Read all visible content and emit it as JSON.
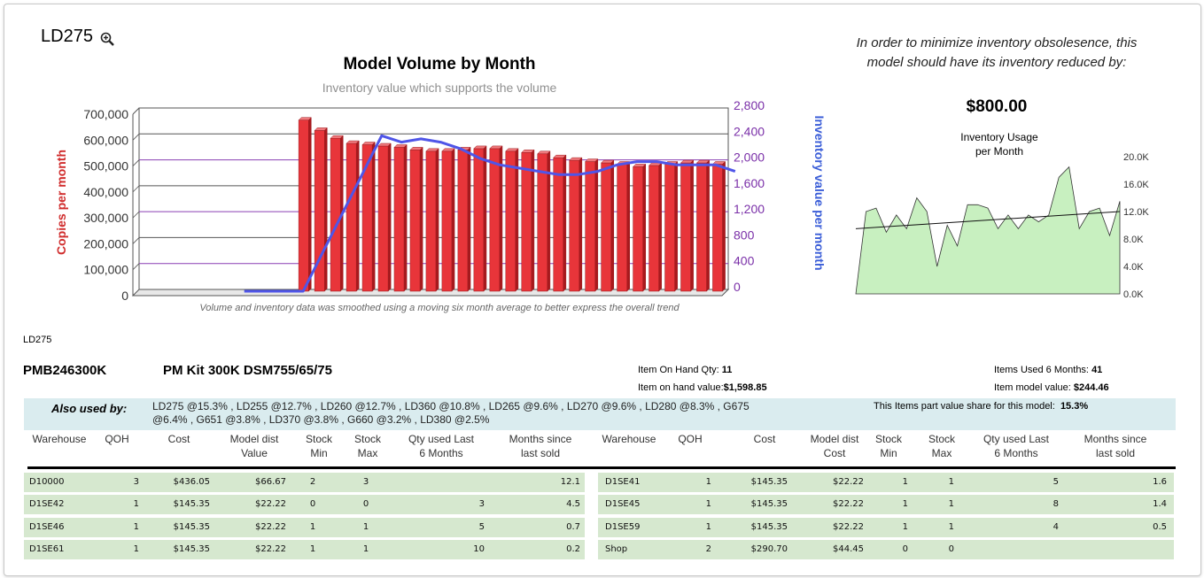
{
  "model": {
    "name": "LD275",
    "zoom_icon": "zoom-in-icon"
  },
  "volume_chart": {
    "title": "Model Volume by Month",
    "subtitle": "Inventory value which supports the volume",
    "left_axis_label": "Copies per month",
    "right_axis_label": "Inventory value per month",
    "footnote": "Volume and inventory data was smoothed using a moving six month average to better express the overall trend",
    "left_ticks": [
      "700,000",
      "600,000",
      "500,000",
      "400,000",
      "300,000",
      "200,000",
      "100,000",
      "0"
    ],
    "right_ticks": [
      "2,800",
      "2,400",
      "2,000",
      "1,600",
      "1,200",
      "800",
      "400",
      "0"
    ],
    "colors": {
      "bars": "#e8353a",
      "line": "#4f55e8",
      "left_label": "#d02b2b",
      "right_label": "#3b5ed8",
      "grid": "#8a3fb3"
    }
  },
  "recommendation": {
    "text": "In order to minimize inventory obsolesence, this model should have its inventory reduced by:",
    "value": "$800.00"
  },
  "usage_chart": {
    "title_line1": "Inventory Usage",
    "title_line2": "per Month",
    "ticks": [
      "20.0K",
      "16.0K",
      "12.0K",
      "8.0K",
      "4.0K",
      "0.0K"
    ],
    "colors": {
      "fill": "#c8f0c0",
      "stroke": "#333333"
    }
  },
  "chart_data": [
    {
      "type": "bar",
      "title": "Model Volume by Month",
      "subtitle": "Inventory value which supports the volume",
      "ylabel": "Copies per month",
      "y2label": "Inventory value per month",
      "ylim": [
        0,
        700000
      ],
      "y2lim": [
        0,
        2800
      ],
      "series": [
        {
          "name": "Copies per month",
          "type": "bar",
          "values": [
            0,
            0,
            0,
            0,
            0,
            0,
            0,
            0,
            0,
            0,
            660000,
            620000,
            590000,
            570000,
            565000,
            560000,
            555000,
            545000,
            540000,
            540000,
            545000,
            550000,
            550000,
            540000,
            535000,
            530000,
            515000,
            505000,
            500000,
            495000,
            490000,
            480000,
            485000,
            490000,
            495000,
            495000,
            490000
          ]
        },
        {
          "name": "Inventory value per month",
          "type": "line",
          "values": [
            null,
            null,
            null,
            null,
            0,
            0,
            0,
            0,
            600,
            1200,
            1800,
            2400,
            2300,
            2350,
            2300,
            2200,
            2050,
            1950,
            1900,
            1850,
            1800,
            1800,
            1850,
            1950,
            2000,
            2000,
            1950,
            1950,
            1950,
            1850
          ]
        }
      ]
    },
    {
      "type": "area",
      "title": "Inventory Usage per Month",
      "ylim": [
        0,
        20000
      ],
      "values": [
        0,
        12000,
        12500,
        9000,
        11500,
        9500,
        14000,
        12000,
        4000,
        10000,
        7000,
        13000,
        13000,
        12500,
        9500,
        11500,
        9500,
        11500,
        10500,
        11500,
        17000,
        18500,
        9500,
        12000,
        12500,
        8500,
        13500
      ],
      "trendline": [
        9500,
        12000
      ]
    }
  ],
  "section_label": "LD275",
  "part": {
    "number": "PMB246300K",
    "description": "PM Kit 300K DSM755/65/75",
    "on_hand_qty_label": "Item On Hand Qty:",
    "on_hand_qty": "11",
    "on_hand_value_label": "Item on hand value:",
    "on_hand_value": "$1,598.85",
    "used_6mo_label": "Items Used 6 Months:",
    "used_6mo": "41",
    "model_value_label": "Item model value:",
    "model_value": "$244.46",
    "share_label": "This Items part value share for this model:",
    "share_value": "15.3%"
  },
  "also_used": {
    "label": "Also used by:",
    "line1": "LD275 @15.3% , LD255 @12.7% , LD260 @12.7% , LD360 @10.8% , LD265 @9.6% , LD270 @9.6% , LD280 @8.3% , G675",
    "line2": "@6.4% , G651 @3.8% , LD370 @3.8% , G660 @3.2% , LD380 @2.5%"
  },
  "table": {
    "headers": [
      "Warehouse",
      "QOH",
      "Cost",
      "Model dist\nValue",
      "Stock\nMin",
      "Stock\nMax",
      "Qty used Last\n6 Months",
      "Months since\nlast sold",
      "Warehouse",
      "QOH",
      "Cost",
      "Model dist\nCost",
      "Stock\nMin",
      "Stock\nMax",
      "Qty used Last\n6 Months",
      "Months since\nlast sold"
    ],
    "rows": [
      [
        "D10000",
        "3",
        "$436.05",
        "$66.67",
        "2",
        "3",
        "",
        "12.1",
        "D1SE41",
        "1",
        "$145.35",
        "$22.22",
        "1",
        "1",
        "5",
        "1.6"
      ],
      [
        "D1SE42",
        "1",
        "$145.35",
        "$22.22",
        "0",
        "0",
        "3",
        "4.5",
        "D1SE45",
        "1",
        "$145.35",
        "$22.22",
        "1",
        "1",
        "8",
        "1.4"
      ],
      [
        "D1SE46",
        "1",
        "$145.35",
        "$22.22",
        "1",
        "1",
        "5",
        "0.7",
        "D1SE59",
        "1",
        "$145.35",
        "$22.22",
        "1",
        "1",
        "4",
        "0.5"
      ],
      [
        "D1SE61",
        "1",
        "$145.35",
        "$22.22",
        "1",
        "1",
        "10",
        "0.2",
        "Shop",
        "2",
        "$290.70",
        "$44.45",
        "0",
        "0",
        "",
        ""
      ]
    ]
  }
}
